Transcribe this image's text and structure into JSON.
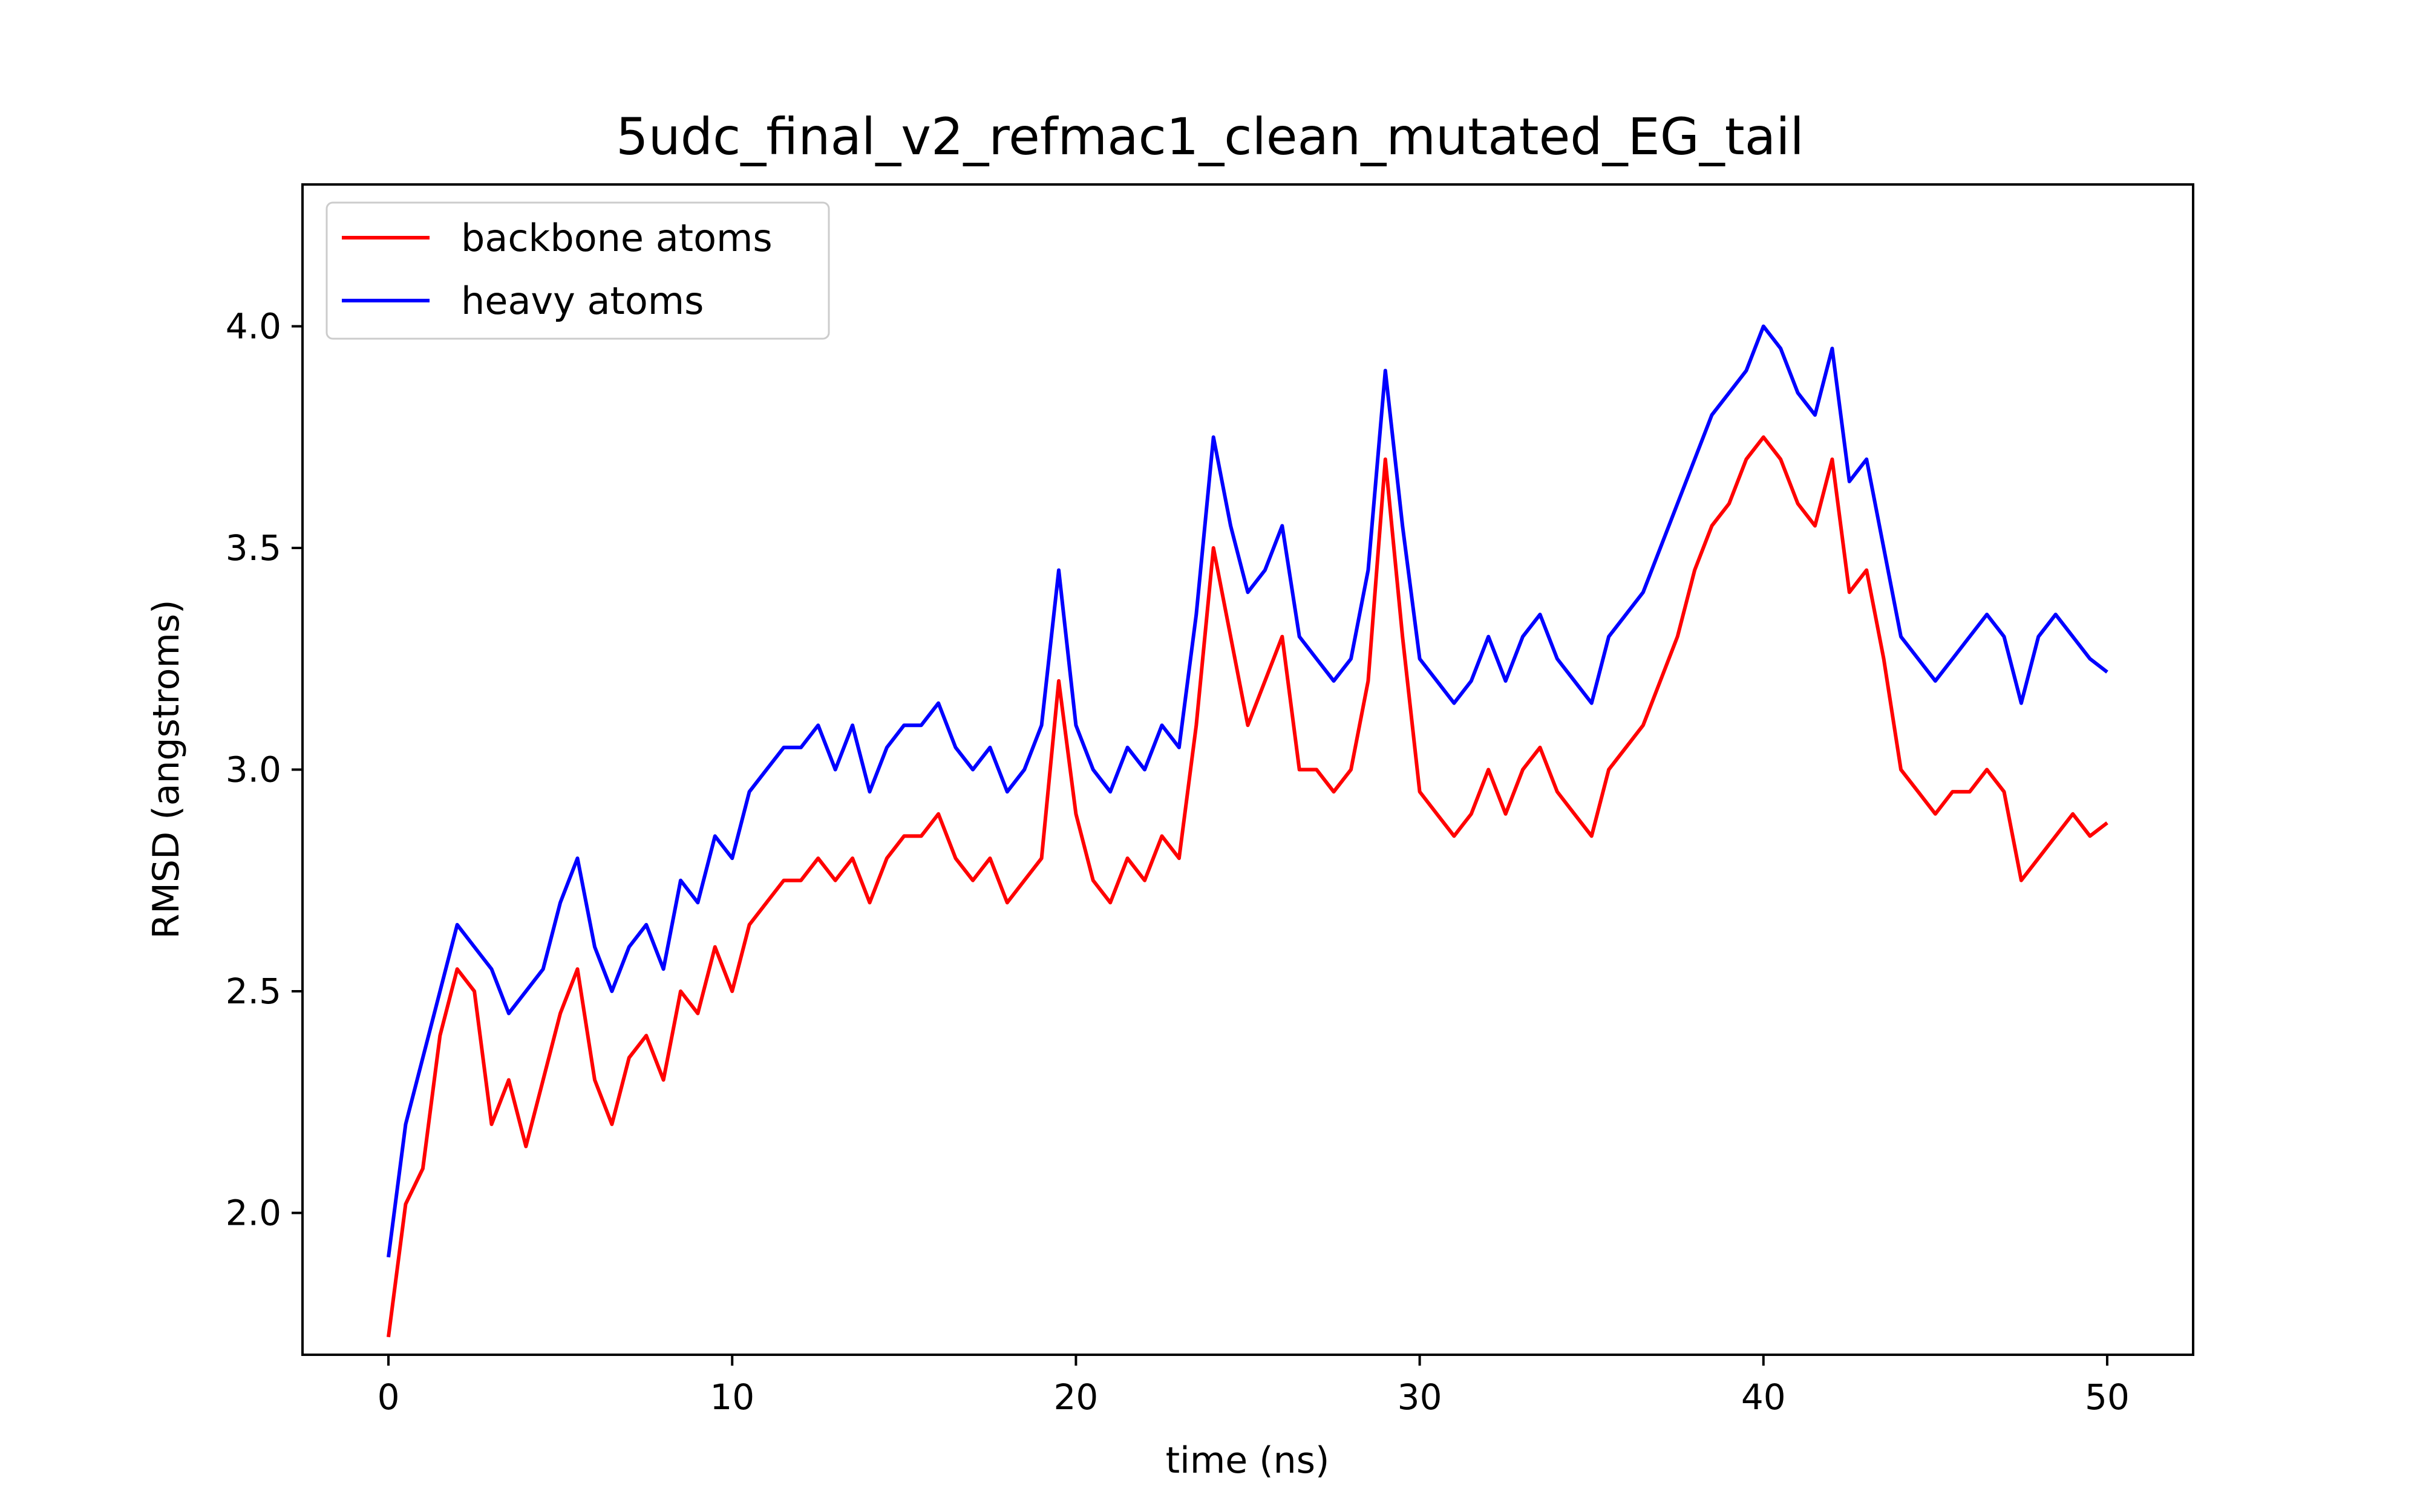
{
  "chart_data": {
    "type": "line",
    "title": "5udc_final_v2_refmac1_clean_mutated_EG_tail",
    "xlabel": "time (ns)",
    "ylabel": "RMSD (angstroms)",
    "xlim": [
      -2.5,
      52.5
    ],
    "ylim": [
      1.68,
      4.32
    ],
    "xticks": [
      0,
      10,
      20,
      30,
      40,
      50
    ],
    "yticks": [
      2.0,
      2.5,
      3.0,
      3.5,
      4.0
    ],
    "xtick_labels": [
      "0",
      "10",
      "20",
      "30",
      "40",
      "50"
    ],
    "ytick_labels": [
      "2.0",
      "2.5",
      "3.0",
      "3.5",
      "4.0"
    ],
    "grid": false,
    "legend_position": "top-left",
    "x": [
      0,
      0.5,
      1,
      1.5,
      2,
      2.5,
      3,
      3.5,
      4,
      4.5,
      5,
      5.5,
      6,
      6.5,
      7,
      7.5,
      8,
      8.5,
      9,
      9.5,
      10,
      10.5,
      11,
      11.5,
      12,
      12.5,
      13,
      13.5,
      14,
      14.5,
      15,
      15.5,
      16,
      16.5,
      17,
      17.5,
      18,
      18.5,
      19,
      19.5,
      20,
      20.5,
      21,
      21.5,
      22,
      22.5,
      23,
      23.5,
      24,
      24.5,
      25,
      25.5,
      26,
      26.5,
      27,
      27.5,
      28,
      28.5,
      29,
      29.5,
      30,
      30.5,
      31,
      31.5,
      32,
      32.5,
      33,
      33.5,
      34,
      34.5,
      35,
      35.5,
      36,
      36.5,
      37,
      37.5,
      38,
      38.5,
      39,
      39.5,
      40,
      40.5,
      41,
      41.5,
      42,
      42.5,
      43,
      43.5,
      44,
      44.5,
      45,
      45.5,
      46,
      46.5,
      47,
      47.5,
      48,
      48.5,
      49,
      49.5,
      50
    ],
    "series": [
      {
        "name": "backbone atoms",
        "color": "#ff0000",
        "values": [
          1.72,
          2.02,
          2.1,
          2.4,
          2.55,
          2.5,
          2.2,
          2.3,
          2.15,
          2.3,
          2.45,
          2.55,
          2.3,
          2.2,
          2.35,
          2.4,
          2.3,
          2.5,
          2.45,
          2.6,
          2.5,
          2.65,
          2.7,
          2.75,
          2.75,
          2.8,
          2.75,
          2.8,
          2.7,
          2.8,
          2.85,
          2.85,
          2.9,
          2.8,
          2.75,
          2.8,
          2.7,
          2.75,
          2.8,
          3.2,
          2.9,
          2.75,
          2.7,
          2.8,
          2.75,
          2.85,
          2.8,
          3.1,
          3.5,
          3.3,
          3.1,
          3.2,
          3.3,
          3.0,
          3.0,
          2.95,
          3.0,
          3.2,
          3.7,
          3.3,
          2.95,
          2.9,
          2.85,
          2.9,
          3.0,
          2.9,
          3.0,
          3.05,
          2.95,
          2.9,
          2.85,
          3.0,
          3.05,
          3.1,
          3.2,
          3.3,
          3.45,
          3.55,
          3.6,
          3.7,
          3.75,
          3.7,
          3.6,
          3.55,
          3.7,
          3.4,
          3.45,
          3.25,
          3.0,
          2.95,
          2.9,
          2.95,
          2.95,
          3.0,
          2.95,
          2.75,
          2.8,
          2.85,
          2.9,
          2.85,
          2.88
        ]
      },
      {
        "name": "heavy atoms",
        "color": "#0000ff",
        "values": [
          1.9,
          2.2,
          2.35,
          2.5,
          2.65,
          2.6,
          2.55,
          2.45,
          2.5,
          2.55,
          2.7,
          2.8,
          2.6,
          2.5,
          2.6,
          2.65,
          2.55,
          2.75,
          2.7,
          2.85,
          2.8,
          2.95,
          3.0,
          3.05,
          3.05,
          3.1,
          3.0,
          3.1,
          2.95,
          3.05,
          3.1,
          3.1,
          3.15,
          3.05,
          3.0,
          3.05,
          2.95,
          3.0,
          3.1,
          3.45,
          3.1,
          3.0,
          2.95,
          3.05,
          3.0,
          3.1,
          3.05,
          3.35,
          3.75,
          3.55,
          3.4,
          3.45,
          3.55,
          3.3,
          3.25,
          3.2,
          3.25,
          3.45,
          3.9,
          3.55,
          3.25,
          3.2,
          3.15,
          3.2,
          3.3,
          3.2,
          3.3,
          3.35,
          3.25,
          3.2,
          3.15,
          3.3,
          3.35,
          3.4,
          3.5,
          3.6,
          3.7,
          3.8,
          3.85,
          3.9,
          4.0,
          3.95,
          3.85,
          3.8,
          3.95,
          3.65,
          3.7,
          3.5,
          3.3,
          3.25,
          3.2,
          3.25,
          3.3,
          3.35,
          3.3,
          3.15,
          3.3,
          3.35,
          3.3,
          3.25,
          3.22
        ]
      }
    ]
  }
}
